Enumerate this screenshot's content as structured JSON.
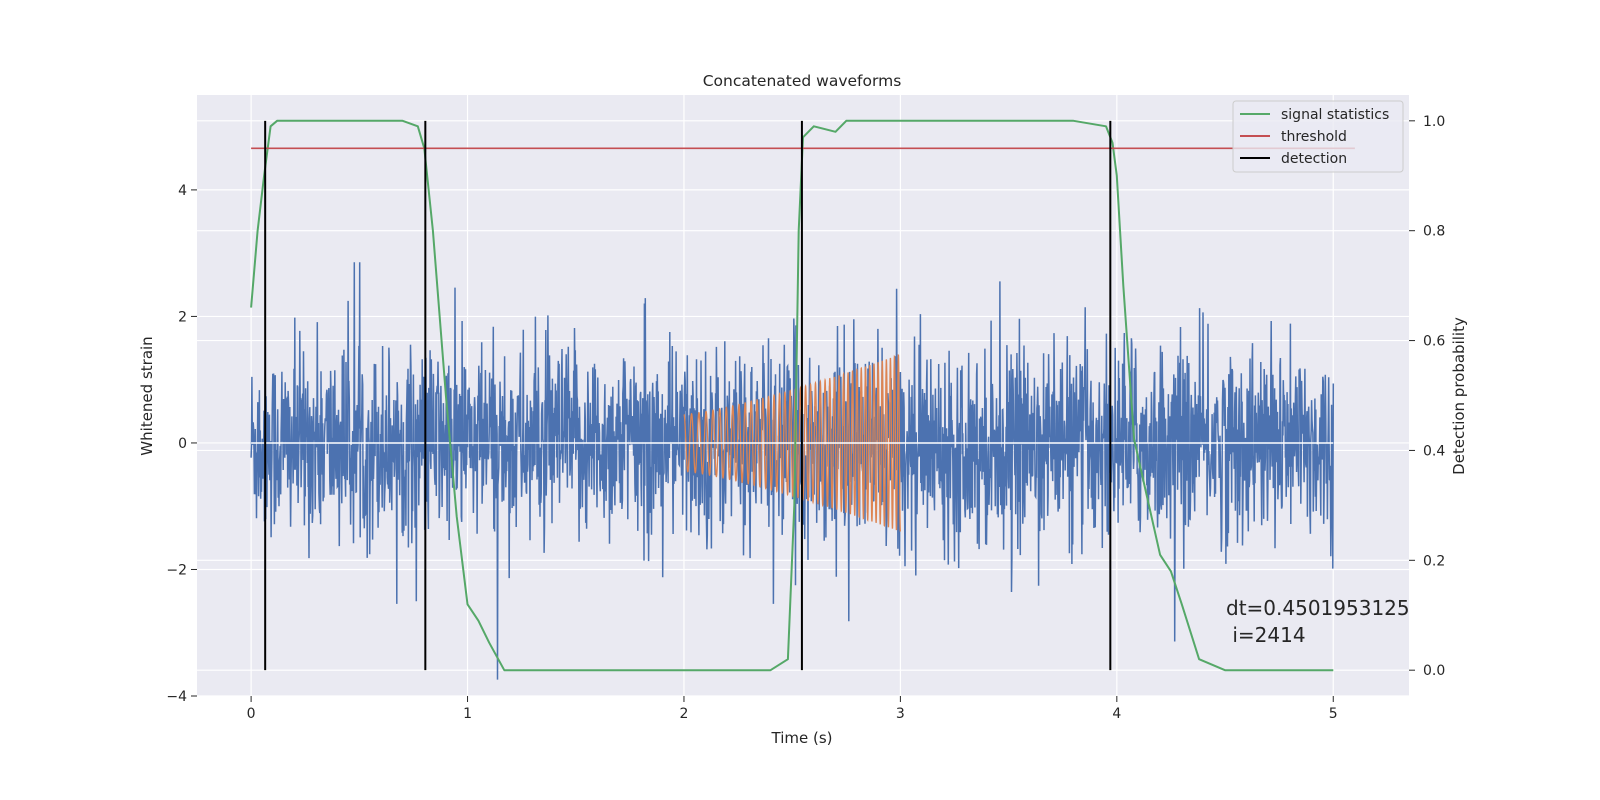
{
  "chart_data": {
    "type": "line",
    "title": "Concatenated waveforms",
    "xlabel": "Time (s)",
    "ylabel": "Whitened strain",
    "y2label": "Detection probability",
    "xlim": [
      -0.25,
      5.35
    ],
    "ylim": [
      -4.0,
      5.5
    ],
    "y2lim": [
      -0.047,
      1.047
    ],
    "xticks": [
      0,
      1,
      2,
      3,
      4,
      5
    ],
    "yticks": [
      -4,
      -2,
      0,
      2,
      4
    ],
    "y2ticks": [
      0.0,
      0.2,
      0.4,
      0.6,
      0.8,
      1.0
    ],
    "y2tick_labels": [
      "0.0",
      "0.2",
      "0.4",
      "0.6",
      "0.8",
      "1.0"
    ],
    "ytick_labels": [
      "−4",
      "−2",
      "0",
      "2",
      "4"
    ],
    "grid": true,
    "legend_position": "top-right",
    "noise": {
      "color": "#4c72b0",
      "x_range": [
        0,
        5
      ],
      "sigma": 0.75
    },
    "chirp": {
      "color": "#dd8452",
      "x_range": [
        2,
        3
      ],
      "amplitude_start": 0.45,
      "amplitude_end": 1.4,
      "freq_start": 28,
      "freq_end": 55
    },
    "series": [
      {
        "name": "signal statistics",
        "color": "#55a868",
        "axis": "right",
        "x": [
          0,
          0.03,
          0.06,
          0.09,
          0.12,
          0.2,
          0.7,
          0.77,
          0.8,
          0.84,
          0.9,
          0.95,
          1.0,
          1.05,
          1.1,
          1.17,
          1.5,
          2.0,
          2.4,
          2.48,
          2.51,
          2.53,
          2.55,
          2.6,
          2.7,
          2.75,
          2.9,
          3.2,
          3.8,
          3.95,
          3.98,
          4.0,
          4.03,
          4.08,
          4.2,
          4.25,
          4.3,
          4.38,
          4.5,
          5.0
        ],
        "y": [
          0.66,
          0.8,
          0.9,
          0.99,
          1.0,
          1.0,
          1.0,
          0.99,
          0.95,
          0.8,
          0.5,
          0.28,
          0.12,
          0.09,
          0.05,
          0.0,
          0.0,
          0.0,
          0.0,
          0.02,
          0.3,
          0.8,
          0.97,
          0.99,
          0.98,
          1.0,
          1.0,
          1.0,
          1.0,
          0.99,
          0.96,
          0.9,
          0.7,
          0.42,
          0.21,
          0.18,
          0.12,
          0.02,
          0.0,
          0.0
        ]
      },
      {
        "name": "threshold",
        "color": "#c44e52",
        "axis": "right",
        "x": [
          0,
          5.1
        ],
        "y": [
          0.95,
          0.95
        ]
      },
      {
        "name": "detection",
        "color": "#000000",
        "axis": "right",
        "x": [
          0.065,
          0.805,
          2.545,
          3.97
        ],
        "y_range": [
          0.0,
          1.0
        ]
      }
    ],
    "annotation": {
      "line1": "dt=0.4501953125",
      "line2": " i=2414"
    }
  }
}
